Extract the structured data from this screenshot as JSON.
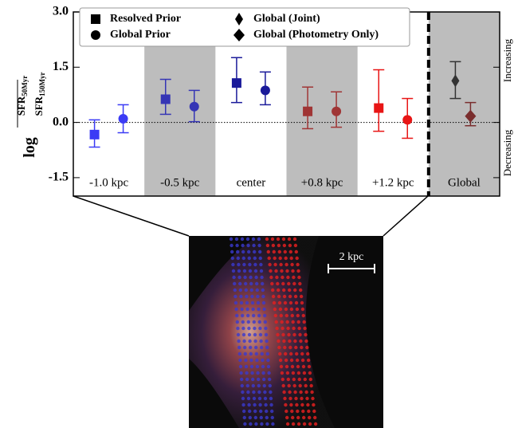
{
  "chart_data": {
    "type": "errorbar",
    "categories": [
      "-1.0 kpc",
      "-0.5 kpc",
      "center",
      "+0.8 kpc",
      "+1.2 kpc",
      "Global"
    ],
    "shaded_categories": [
      1,
      3,
      5
    ],
    "separator": true,
    "zero_line": true,
    "ylim": [
      -2,
      3
    ],
    "yticks": [
      {
        "value": -1.5,
        "label": "-1.5"
      },
      {
        "value": 0,
        "label": "0.0"
      },
      {
        "value": 1.5,
        "label": "1.5"
      },
      {
        "value": 3,
        "label": "3.0"
      }
    ],
    "ylabel": {
      "log": "log",
      "numerator": "SFR",
      "numerator_sub": "50Myr",
      "denominator": "SFR",
      "denominator_sub": "150Myr"
    },
    "right_labels": {
      "upper": "Increasing",
      "lower": "Decreasing"
    },
    "series": [
      {
        "name": "Resolved Prior",
        "marker": "square",
        "colors": [
          "#3b3bf5",
          "#3535b5",
          "#1a1a9a",
          "#a03535",
          "#e81515",
          null
        ],
        "values": [
          -0.33,
          0.63,
          1.07,
          0.3,
          0.39,
          null
        ],
        "lower": [
          -0.67,
          0.22,
          0.54,
          -0.17,
          -0.24,
          null
        ],
        "upper": [
          0.07,
          1.17,
          1.76,
          0.96,
          1.43,
          null
        ]
      },
      {
        "name": "Global Prior",
        "marker": "circle",
        "colors": [
          "#3b3bf5",
          "#3535b5",
          "#1a1a9a",
          "#a03535",
          "#e81515",
          null
        ],
        "values": [
          0.1,
          0.43,
          0.87,
          0.3,
          0.07,
          null
        ],
        "lower": [
          -0.28,
          0.02,
          0.48,
          -0.13,
          -0.43,
          null
        ],
        "upper": [
          0.48,
          0.87,
          1.37,
          0.83,
          0.65,
          null
        ]
      },
      {
        "name": "Global (Joint)",
        "marker": "thin_diamond",
        "colors": [
          null,
          null,
          null,
          null,
          null,
          "#333333"
        ],
        "values": [
          null,
          null,
          null,
          null,
          null,
          1.13
        ],
        "lower": [
          null,
          null,
          null,
          null,
          null,
          0.65
        ],
        "upper": [
          null,
          null,
          null,
          null,
          null,
          1.65
        ]
      },
      {
        "name": "Global (Photometry Only)",
        "marker": "diamond",
        "colors": [
          null,
          null,
          null,
          null,
          null,
          "#7a2e2e"
        ],
        "values": [
          null,
          null,
          null,
          null,
          null,
          0.17
        ],
        "lower": [
          null,
          null,
          null,
          null,
          null,
          -0.09
        ],
        "upper": [
          null,
          null,
          null,
          null,
          null,
          0.54
        ]
      }
    ]
  },
  "image": {
    "scale_bar": "2 kpc"
  }
}
